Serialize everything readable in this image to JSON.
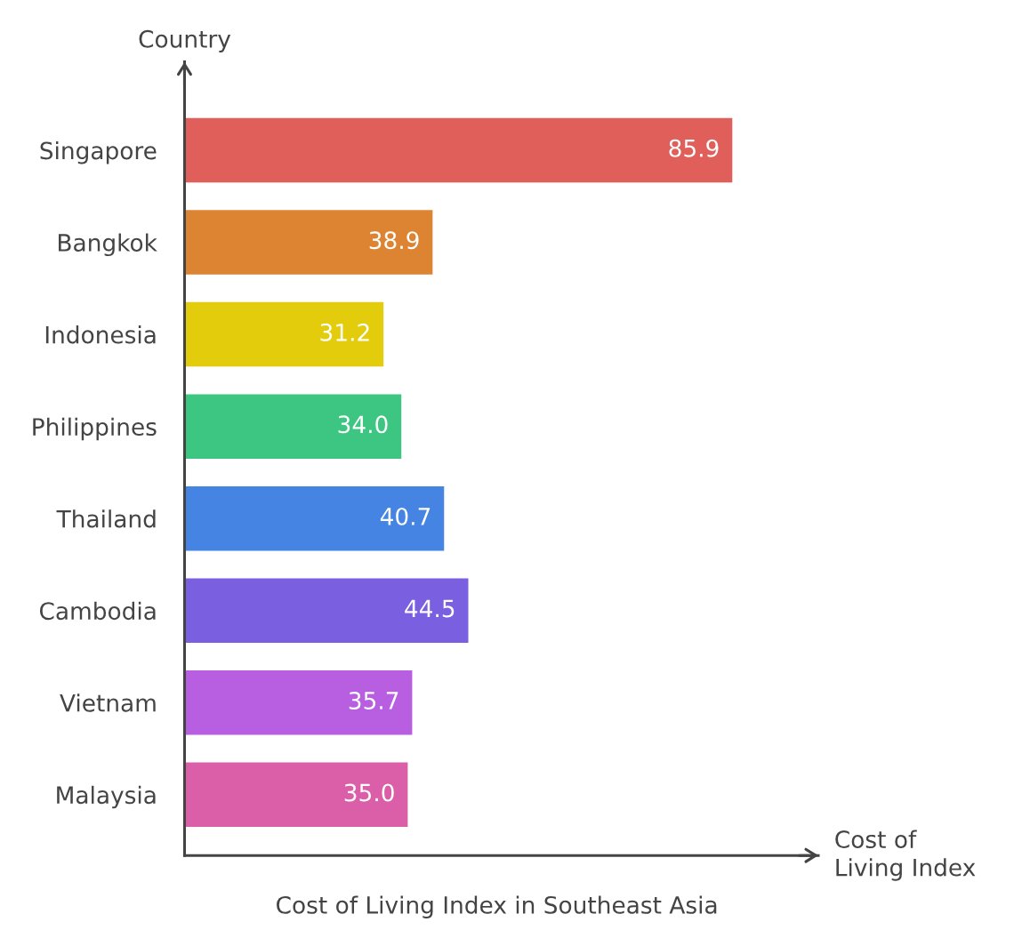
{
  "chart_data": {
    "type": "bar",
    "orientation": "horizontal",
    "title": "Cost of Living Index in Southeast Asia",
    "xlabel": "Cost of\nLiving Index",
    "ylabel": "Country",
    "categories": [
      "Singapore",
      "Bangkok",
      "Indonesia",
      "Philippines",
      "Thailand",
      "Cambodia",
      "Vietnam",
      "Malaysia"
    ],
    "values": [
      85.9,
      38.9,
      31.2,
      34.0,
      40.7,
      44.5,
      35.7,
      35.0
    ],
    "value_labels": [
      "85.9",
      "38.9",
      "31.2",
      "34.0",
      "40.7",
      "44.5",
      "35.7",
      "35.0"
    ],
    "colors": [
      "#e15f5b",
      "#dd8433",
      "#e2cc0c",
      "#3dc682",
      "#4584e3",
      "#7a5fe0",
      "#b85ee0",
      "#da5fa8"
    ],
    "grid": false,
    "legend": false,
    "tick_labels": "y"
  }
}
